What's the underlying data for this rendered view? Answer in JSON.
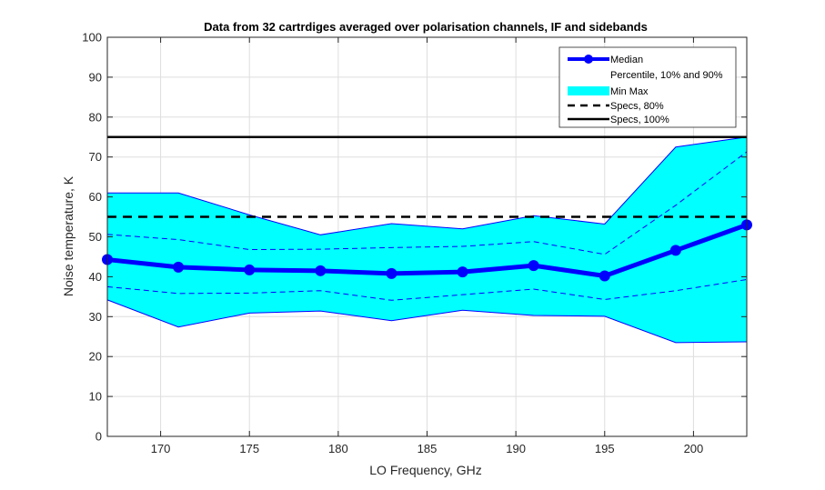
{
  "chart_data": {
    "type": "line",
    "title": "Data from 32 cartrdiges averaged over polarisation channels, IF and sidebands",
    "xlabel": "LO Frequency, GHz",
    "ylabel": "Noise temperature, K",
    "xlim": [
      167,
      203
    ],
    "ylim": [
      0,
      100
    ],
    "xticks": [
      "170",
      "175",
      "180",
      "185",
      "190",
      "195",
      "200"
    ],
    "yticks": [
      "0",
      "10",
      "20",
      "30",
      "40",
      "50",
      "60",
      "70",
      "80",
      "90",
      "100"
    ],
    "grid": true,
    "legend_position": "top-right",
    "x": [
      167,
      171,
      175,
      179,
      183,
      187,
      191,
      195,
      199,
      203
    ],
    "series": [
      {
        "name": "Median",
        "style": "thick-line-markers",
        "color": "#0000ff",
        "values": [
          44.3,
          42.4,
          41.7,
          41.5,
          40.8,
          41.2,
          42.8,
          40.2,
          46.6,
          53.0
        ]
      },
      {
        "name": "Percentile, 10% and 90%",
        "style": "dashed",
        "color": "#0000ff",
        "upper": [
          50.6,
          49.3,
          46.8,
          46.9,
          47.3,
          47.6,
          48.8,
          45.6,
          57.9,
          71.3
        ],
        "lower": [
          37.5,
          35.8,
          35.9,
          36.5,
          34.1,
          35.5,
          36.9,
          34.3,
          36.5,
          39.3
        ]
      },
      {
        "name": "Min Max",
        "style": "filled-band",
        "color": "#00ffff",
        "edge_color": "#0000ff",
        "max": [
          61.0,
          61.0,
          55.5,
          50.5,
          53.3,
          52.0,
          55.3,
          53.2,
          72.5,
          75.0
        ],
        "min": [
          34.2,
          27.4,
          30.9,
          31.4,
          29.0,
          31.6,
          30.3,
          30.1,
          23.5,
          23.7
        ]
      },
      {
        "name": "Specs, 80%",
        "style": "dashed-black",
        "color": "#000000",
        "constant": 55
      },
      {
        "name": "Specs, 100%",
        "style": "solid-black",
        "color": "#000000",
        "constant": 75
      }
    ]
  }
}
